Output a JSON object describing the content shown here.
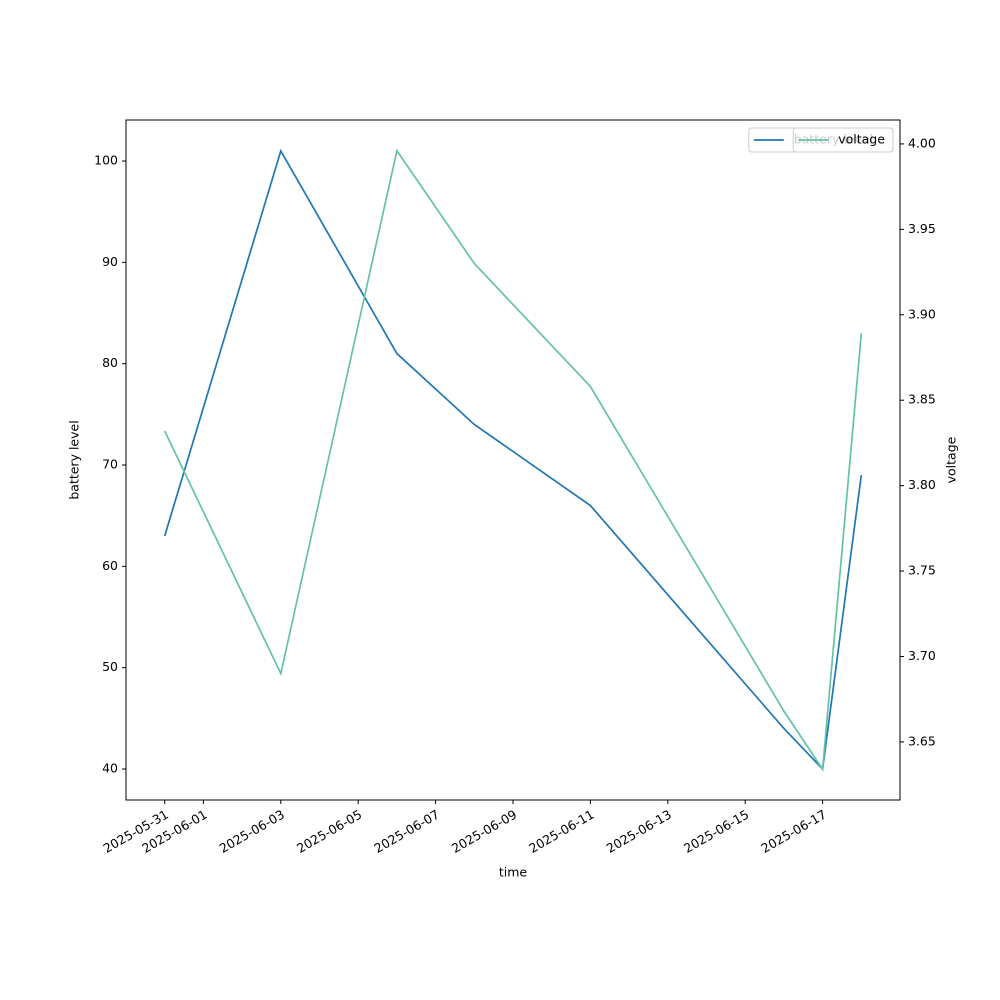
{
  "chart_data": {
    "type": "line",
    "x": [
      "2025-05-31",
      "2025-06-03",
      "2025-06-06",
      "2025-06-08",
      "2025-06-11",
      "2025-06-16",
      "2025-06-17",
      "2025-06-18"
    ],
    "series": [
      {
        "name": "battery level",
        "color": "#1f77b4",
        "values": [
          63,
          101,
          81,
          74,
          66,
          44,
          40,
          69
        ]
      },
      {
        "name": "voltage",
        "color": "#66c2a5",
        "axis": "y2",
        "values": [
          3.832,
          3.69,
          3.996,
          3.93,
          3.858,
          3.668,
          3.634,
          3.889
        ]
      }
    ],
    "xlabel": "time",
    "ylabel": "battery level",
    "y2label": "voltage",
    "xlim": [
      "2025-05-30",
      "2025-06-19"
    ],
    "xticks": [
      "2025-05-31",
      "2025-06-01",
      "2025-06-03",
      "2025-06-05",
      "2025-06-07",
      "2025-06-09",
      "2025-06-11",
      "2025-06-13",
      "2025-06-15",
      "2025-06-17"
    ],
    "ylim": [
      36.94,
      104.05
    ],
    "yticks": [
      40,
      50,
      60,
      70,
      80,
      90,
      100
    ],
    "y2lim": [
      3.616,
      4.014
    ],
    "y2ticks": [
      3.65,
      {
        "value": 3.7,
        "label": "3.70"
      },
      3.75,
      {
        "value": 3.8,
        "label": "3.80"
      },
      3.85,
      {
        "value": 3.9,
        "label": "3.90"
      },
      3.95,
      {
        "value": 4,
        "label": "4.00"
      }
    ],
    "legend": "upper right"
  }
}
